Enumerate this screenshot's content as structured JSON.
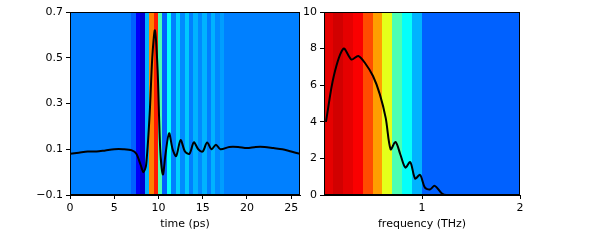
{
  "chart_data": [
    {
      "type": "line",
      "xlabel": "time (ps)",
      "x": [
        0,
        1,
        2,
        3,
        4,
        5,
        6,
        7,
        7.5,
        8,
        8.3,
        8.6,
        9,
        9.3,
        9.6,
        9.9,
        10.2,
        10.5,
        10.8,
        11.2,
        11.6,
        12,
        12.5,
        13,
        13.5,
        14,
        14.5,
        15,
        15.5,
        16,
        16.5,
        17,
        18,
        19,
        20,
        21,
        22,
        23,
        24,
        25,
        26
      ],
      "values": [
        0.08,
        0.085,
        0.09,
        0.09,
        0.095,
        0.1,
        0.1,
        0.095,
        0.08,
        0.03,
        0.0,
        0.03,
        0.25,
        0.5,
        0.62,
        0.45,
        0.1,
        -0.01,
        0.08,
        0.17,
        0.1,
        0.07,
        0.14,
        0.09,
        0.08,
        0.13,
        0.1,
        0.09,
        0.13,
        0.1,
        0.12,
        0.1,
        0.11,
        0.11,
        0.105,
        0.11,
        0.11,
        0.105,
        0.1,
        0.09,
        0.08
      ],
      "color": "#000000",
      "xlim": [
        0,
        26
      ],
      "xticks": [
        0,
        5,
        10,
        15,
        20,
        25
      ],
      "ylim": [
        -0.1,
        0.7
      ],
      "yticks": [
        {
          "value": -0.1,
          "label": "−0.1"
        },
        0.1,
        0.3,
        0.5,
        0.7
      ],
      "grid": false,
      "cells": {
        "bins": [
          0,
          0.5,
          1,
          1.5,
          2,
          2.5,
          3,
          3.5,
          4,
          4.5,
          5,
          5.5,
          6,
          6.5,
          7,
          7.5,
          8,
          8.5,
          9,
          9.5,
          10,
          10.5,
          11,
          11.5,
          12,
          12.5,
          13,
          13.5,
          14,
          14.5,
          15,
          15.5,
          16,
          16.5,
          17,
          17.5,
          18,
          18.5,
          19,
          19.5,
          20,
          20.5,
          21,
          21.5,
          22,
          22.5,
          23,
          23.5,
          24,
          24.5,
          25,
          25.5,
          26
        ],
        "values": [
          0.25,
          0.25,
          0.25,
          0.25,
          0.25,
          0.25,
          0.25,
          0.25,
          0.25,
          0.25,
          0.25,
          0.25,
          0.25,
          0.25,
          0.22,
          0.12,
          0.08,
          0.3,
          0.75,
          0.85,
          0.45,
          0.22,
          0.38,
          0.25,
          0.33,
          0.26,
          0.32,
          0.25,
          0.3,
          0.26,
          0.3,
          0.25,
          0.3,
          0.26,
          0.28,
          0.25,
          0.25,
          0.25,
          0.25,
          0.25,
          0.25,
          0.25,
          0.25,
          0.25,
          0.25,
          0.25,
          0.25,
          0.25,
          0.25,
          0.25,
          0.25,
          0.25
        ]
      }
    },
    {
      "type": "line",
      "xlabel": "frequency (THz)",
      "x": [
        0.02,
        0.1,
        0.2,
        0.28,
        0.35,
        0.42,
        0.5,
        0.57,
        0.63,
        0.68,
        0.73,
        0.78,
        0.83,
        0.88,
        0.93,
        0.98,
        1.03,
        1.08,
        1.13,
        1.2,
        1.25,
        1.5,
        2
      ],
      "values": [
        4,
        6.5,
        8,
        7.4,
        7.6,
        7.2,
        6.5,
        5.5,
        4.2,
        2.5,
        2.9,
        2.2,
        1.5,
        1.8,
        0.9,
        1.1,
        0.4,
        0.3,
        0.5,
        0.1,
        0,
        0,
        0
      ],
      "color": "#000000",
      "xlim": [
        0,
        2
      ],
      "xticks": [
        1,
        2
      ],
      "ylim": [
        0,
        10
      ],
      "yticks": [
        0,
        2,
        4,
        6,
        8,
        10
      ],
      "grid": false,
      "cells": {
        "bins": [
          0,
          0.1,
          0.2,
          0.3,
          0.4,
          0.5,
          0.6,
          0.7,
          0.8,
          0.9,
          1.0,
          1.1,
          1.2,
          1.3,
          1.4,
          1.5,
          1.6,
          1.7,
          1.8,
          1.9,
          2.0
        ],
        "values": [
          0.9,
          0.92,
          0.9,
          0.88,
          0.8,
          0.72,
          0.6,
          0.45,
          0.38,
          0.3,
          0.22,
          0.22,
          0.22,
          0.22,
          0.22,
          0.22,
          0.22,
          0.22,
          0.22,
          0.22
        ]
      }
    }
  ]
}
